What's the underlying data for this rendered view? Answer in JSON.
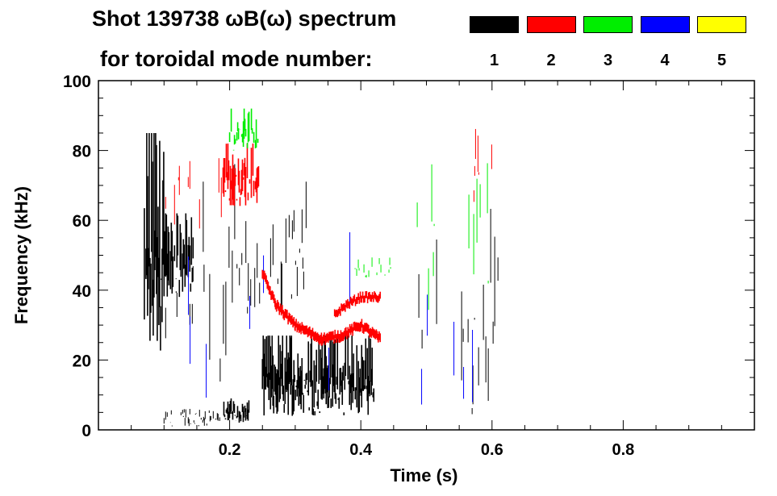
{
  "chart_data": {
    "type": "heatmap",
    "title": "Shot 139738 ωB(ω) spectrum",
    "subtitle": "for toroidal mode number:",
    "xlabel": "Time (s)",
    "ylabel": "Frequency (kHz)",
    "xlim": [
      0,
      1.0
    ],
    "ylim": [
      0,
      100
    ],
    "xticks": [
      0.2,
      0.4,
      0.6,
      0.8
    ],
    "xtick_labels": [
      "0.2",
      "0.4",
      "0.6",
      "0.8"
    ],
    "yticks": [
      0,
      20,
      40,
      60,
      80,
      100
    ],
    "ytick_labels": [
      "0",
      "20",
      "40",
      "60",
      "80",
      "100"
    ],
    "legend": [
      {
        "mode": "1",
        "color": "#000000"
      },
      {
        "mode": "2",
        "color": "#ff0000"
      },
      {
        "mode": "3",
        "color": "#00ee00"
      },
      {
        "mode": "4",
        "color": "#0000ff"
      },
      {
        "mode": "5",
        "color": "#ffff00"
      }
    ],
    "regions": [
      {
        "mode": 1,
        "t": [
          0.07,
          0.1
        ],
        "f": [
          22,
          85
        ],
        "density": 0.95
      },
      {
        "mode": 1,
        "t": [
          0.1,
          0.145
        ],
        "f": [
          38,
          62
        ],
        "density": 0.8
      },
      {
        "mode": 1,
        "t": [
          0.1,
          0.145
        ],
        "f": [
          20,
          70
        ],
        "density": 0.25
      },
      {
        "mode": 1,
        "t": [
          0.145,
          0.21
        ],
        "f": [
          10,
          100
        ],
        "density": 0.18
      },
      {
        "mode": 1,
        "t": [
          0.1,
          0.19
        ],
        "f": [
          1,
          9
        ],
        "density": 0.5
      },
      {
        "mode": 1,
        "t": [
          0.19,
          0.23
        ],
        "f": [
          2,
          9
        ],
        "density": 0.95
      },
      {
        "mode": 1,
        "t": [
          0.21,
          0.25
        ],
        "f": [
          30,
          70
        ],
        "density": 0.3
      },
      {
        "mode": 1,
        "t": [
          0.25,
          0.42
        ],
        "f": [
          4,
          27
        ],
        "density": 0.95
      },
      {
        "mode": 1,
        "t": [
          0.26,
          0.32
        ],
        "f": [
          35,
          82
        ],
        "density": 0.35
      },
      {
        "mode": 1,
        "t": [
          0.47,
          0.52
        ],
        "f": [
          5,
          95
        ],
        "density": 0.12
      },
      {
        "mode": 1,
        "t": [
          0.55,
          0.615
        ],
        "f": [
          2,
          90
        ],
        "density": 0.2
      },
      {
        "mode": 2,
        "t": [
          0.19,
          0.245
        ],
        "f": [
          64,
          82
        ],
        "density": 0.9
      },
      {
        "mode": 2,
        "t": [
          0.1,
          0.19
        ],
        "f": [
          55,
          95
        ],
        "density": 0.12
      },
      {
        "mode": 2,
        "t": [
          0.57,
          0.6
        ],
        "f": [
          65,
          100
        ],
        "density": 0.35
      },
      {
        "mode": 3,
        "t": [
          0.2,
          0.245
        ],
        "f": [
          80,
          92
        ],
        "density": 0.7
      },
      {
        "mode": 3,
        "t": [
          0.39,
          0.45
        ],
        "f": [
          43,
          52
        ],
        "density": 0.35
      },
      {
        "mode": 3,
        "t": [
          0.47,
          0.61
        ],
        "f": [
          30,
          95
        ],
        "density": 0.06
      },
      {
        "mode": 4,
        "t": [
          0.12,
          0.6
        ],
        "f": [
          5,
          100
        ],
        "density": 0.02
      }
    ],
    "chirps": [
      {
        "mode": 2,
        "points": [
          [
            0.25,
            45
          ],
          [
            0.27,
            36
          ],
          [
            0.3,
            30
          ],
          [
            0.34,
            26
          ],
          [
            0.37,
            27
          ],
          [
            0.4,
            30
          ],
          [
            0.43,
            26
          ]
        ],
        "width": 2.5
      },
      {
        "mode": 2,
        "points": [
          [
            0.36,
            33
          ],
          [
            0.38,
            36
          ],
          [
            0.4,
            38
          ],
          [
            0.43,
            38
          ]
        ],
        "width": 2
      }
    ]
  }
}
